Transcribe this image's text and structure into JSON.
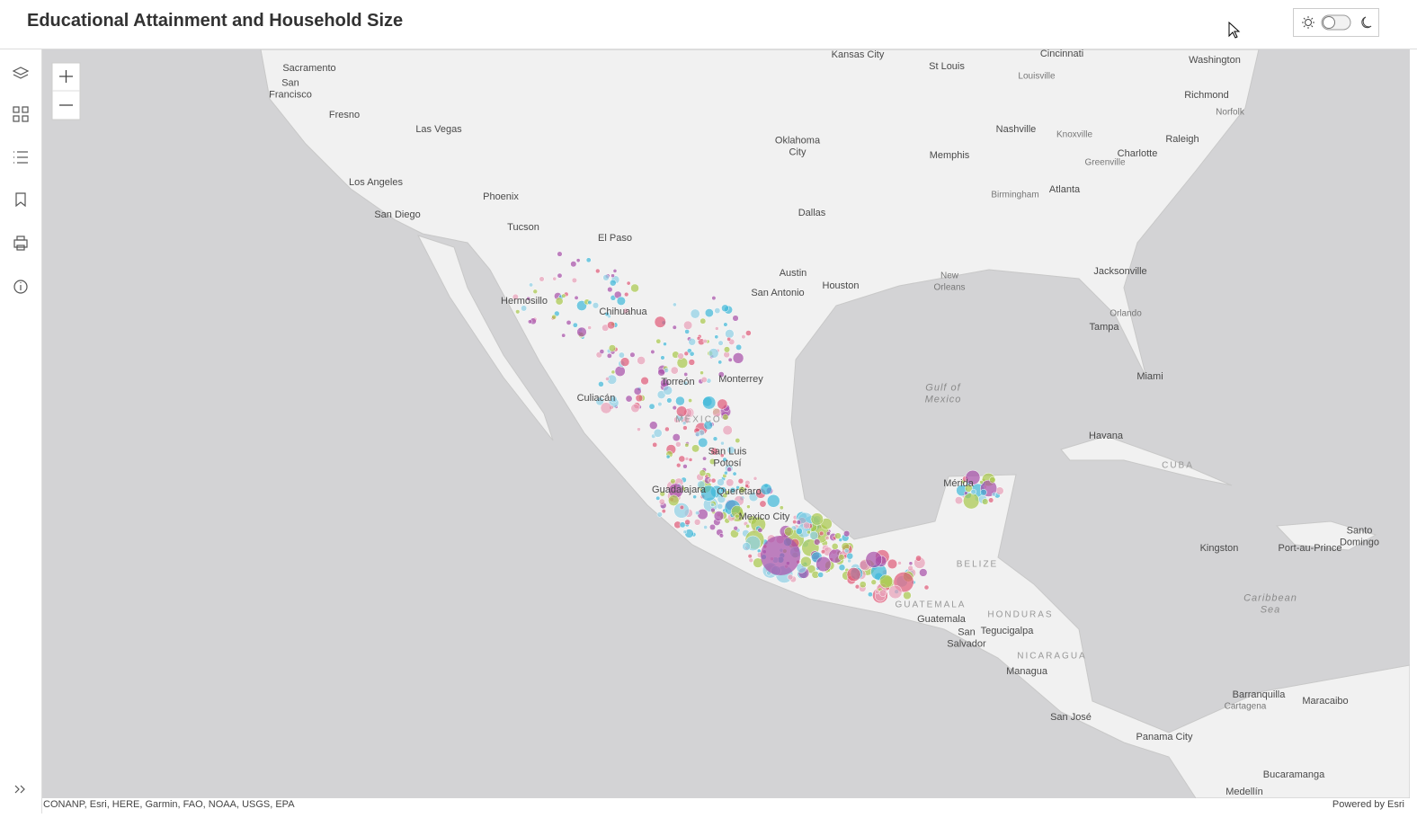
{
  "header": {
    "title": "Educational Attainment and Household Size"
  },
  "map": {
    "labels": [
      "Sacramento",
      "San Francisco",
      "Fresno",
      "Las Vegas",
      "Los Angeles",
      "San Diego",
      "Phoenix",
      "Tucson",
      "El Paso",
      "Hermosillo",
      "Chihuahua",
      "Culiacán",
      "Torreón",
      "Monterrey",
      "MÉXICO",
      "San Luis Potosí",
      "Guadalajara",
      "Querétaro",
      "Mexico City",
      "Kansas City",
      "St Louis",
      "Cincinnati",
      "Louisville",
      "Washington",
      "Richmond",
      "Norfolk",
      "Nashville",
      "Knoxville",
      "Charlotte",
      "Greenville",
      "Raleigh",
      "Oklahoma City",
      "Memphis",
      "Birmingham",
      "Atlanta",
      "Dallas",
      "Austin",
      "San Antonio",
      "Houston",
      "New Orleans",
      "Jacksonville",
      "Orlando",
      "Tampa",
      "Miami",
      "Gulf of Mexico",
      "Havana",
      "CUBA",
      "Mérida",
      "BELIZE",
      "GUATEMALA",
      "Guatemala",
      "HONDURAS",
      "Tegucigalpa",
      "San Salvador",
      "NICARAGUA",
      "Managua",
      "Port-au-Prince",
      "Santo Domingo",
      "Kingston",
      "Caribbean Sea",
      "Barranquilla",
      "Cartagena",
      "Maracaibo",
      "San José",
      "Panama City",
      "Bucaramanga",
      "Medellín"
    ]
  },
  "footer": {
    "attribution": "CONANP, Esri, HERE, Garmin, FAO, NOAA, USGS, EPA",
    "powered_by": "Powered by Esri"
  }
}
